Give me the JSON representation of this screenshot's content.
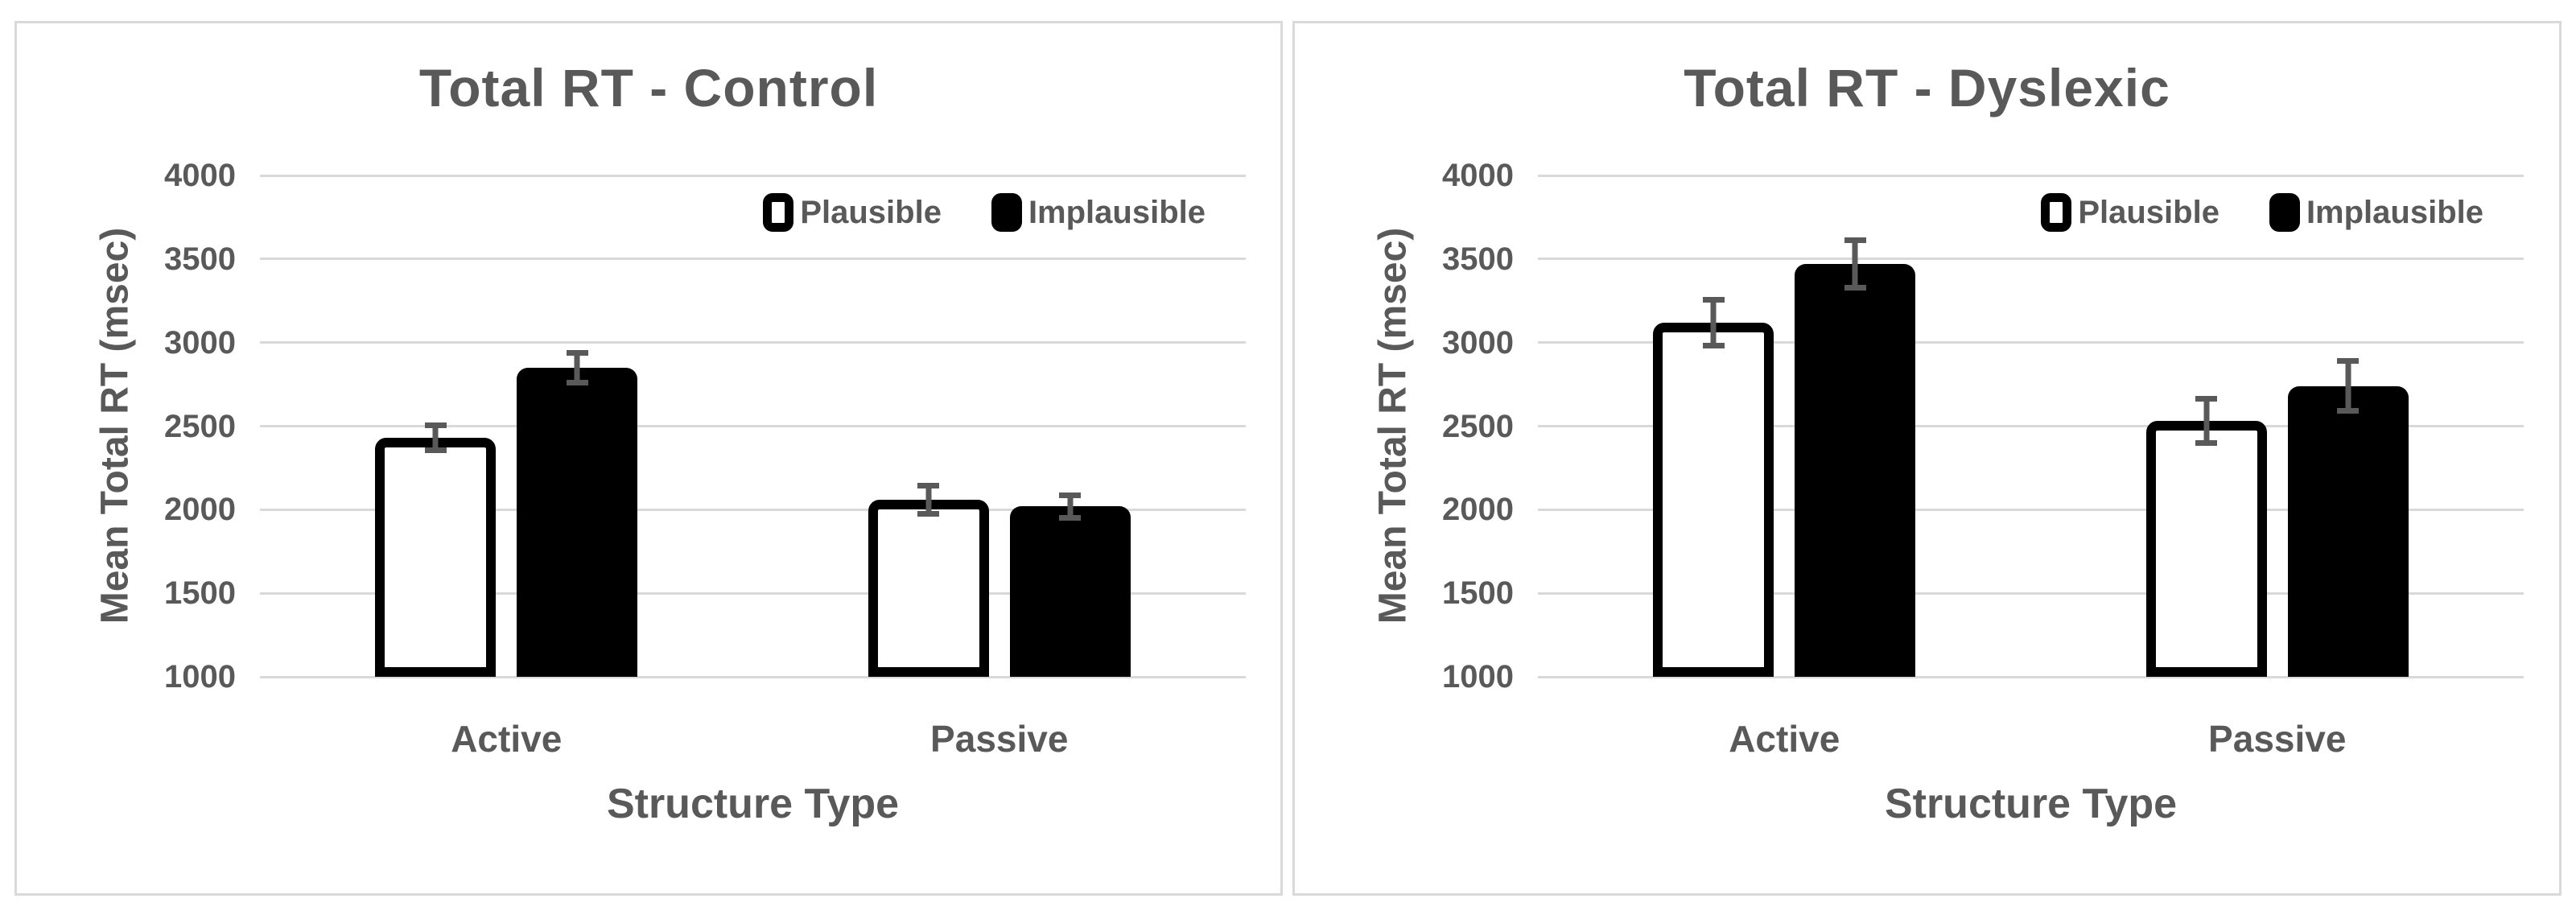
{
  "colors": {
    "text": "#595959",
    "gridline": "#d9d9d9",
    "error_bar": "#595959",
    "bar_implausible_fill": "#000000",
    "bar_plausible_fill": "#ffffff",
    "bar_border": "#000000",
    "panel_border": "#d9d9d9",
    "background": "#ffffff"
  },
  "chart_data": [
    {
      "type": "bar",
      "title": "Total RT - Control",
      "ylabel": "Mean Total RT (msec)",
      "xlabel": "Structure Type",
      "categories": [
        "Active",
        "Passive"
      ],
      "y_min": 1000,
      "y_max": 4000,
      "y_step": 500,
      "y_ticks": [
        "4000",
        "3500",
        "3000",
        "2500",
        "2000",
        "1500",
        "1000"
      ],
      "grid": true,
      "legend_position": "top-right-inside",
      "series": [
        {
          "name": "Plausible",
          "fill": "white",
          "values": [
            2430,
            2060
          ],
          "errors": [
            90,
            100
          ]
        },
        {
          "name": "Implausible",
          "fill": "black",
          "values": [
            2850,
            2020
          ],
          "errors": [
            105,
            85
          ]
        }
      ]
    },
    {
      "type": "bar",
      "title": "Total RT - Dyslexic",
      "ylabel": "Mean Total RT (msec)",
      "xlabel": "Structure Type",
      "categories": [
        "Active",
        "Passive"
      ],
      "y_min": 1000,
      "y_max": 4000,
      "y_step": 500,
      "y_ticks": [
        "4000",
        "3500",
        "3000",
        "2500",
        "2000",
        "1500",
        "1000"
      ],
      "grid": true,
      "legend_position": "top-right-inside",
      "series": [
        {
          "name": "Plausible",
          "fill": "white",
          "values": [
            3120,
            2530
          ],
          "errors": [
            155,
            150
          ]
        },
        {
          "name": "Implausible",
          "fill": "black",
          "values": [
            3470,
            2740
          ],
          "errors": [
            160,
            165
          ]
        }
      ]
    }
  ]
}
